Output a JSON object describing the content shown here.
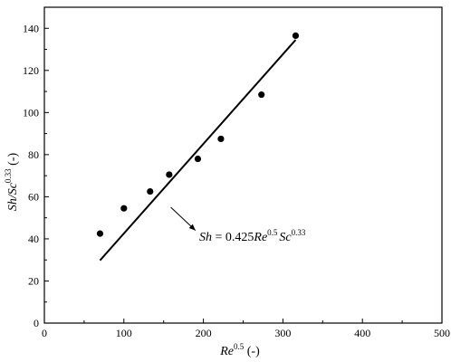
{
  "chart_data": {
    "type": "scatter",
    "x_ticks": [
      0,
      100,
      200,
      300,
      400,
      500
    ],
    "y_ticks": [
      0,
      20,
      40,
      60,
      80,
      100,
      120,
      140
    ],
    "xlim": [
      0,
      500
    ],
    "ylim": [
      0,
      150
    ],
    "xlabel": {
      "main": "Re",
      "sup": "0.5",
      "tail": " (-)"
    },
    "ylabel": {
      "main": "Sh/Sc",
      "sup": "0.33",
      "tail": " (-)"
    },
    "grid": false,
    "legend": "none",
    "series": [
      {
        "kind": "points",
        "x": [
          70,
          100,
          133,
          157,
          193,
          222,
          273,
          316
        ],
        "y": [
          42.5,
          54.5,
          62.5,
          70.5,
          78,
          87.5,
          108.5,
          136.5
        ]
      },
      {
        "kind": "fit-line",
        "x": [
          70,
          316
        ],
        "y": [
          29.8,
          134.5
        ]
      }
    ],
    "annotation": {
      "lhs": "Sh",
      "eq": " = 0.425",
      "re": "Re",
      "re_exp": "0.5",
      "sc": "Sc",
      "sc_exp": "0.33",
      "arrow_from": [
        159,
        55
      ],
      "arrow_to": [
        190,
        44
      ]
    }
  }
}
